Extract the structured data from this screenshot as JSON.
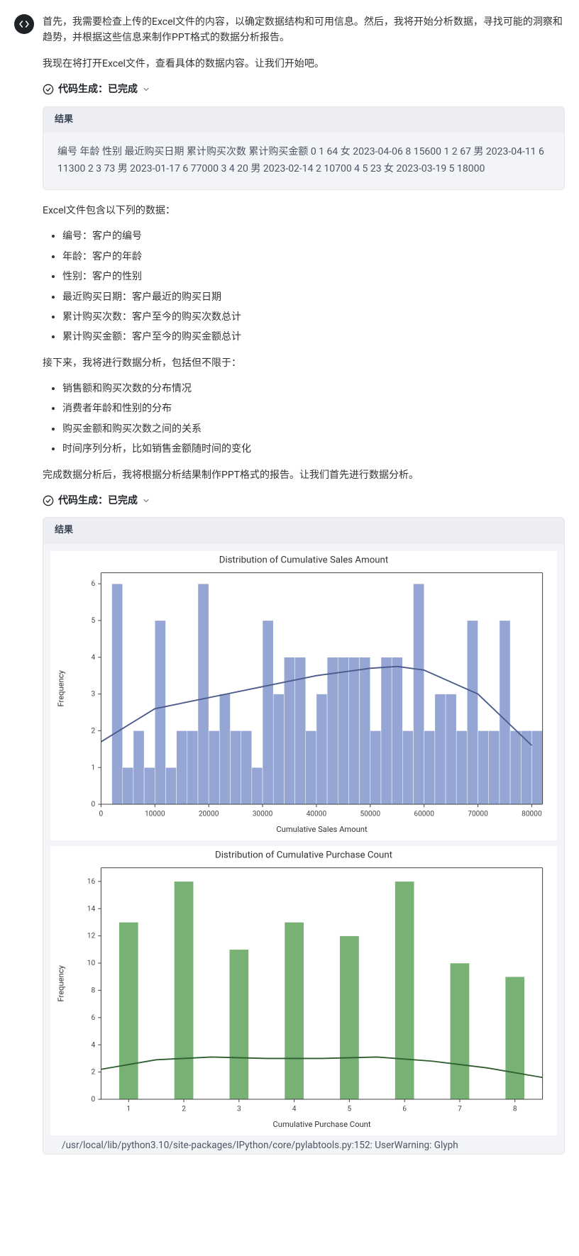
{
  "avatar": {
    "bg": "#1f2328",
    "icon_stroke": "#ffffff"
  },
  "intro": {
    "p1": "首先，我需要检查上传的Excel文件的内容，以确定数据结构和可用信息。然后，我将开始分析数据，寻找可能的洞察和趋势，并根据这些信息来制作PPT格式的数据分析报告。",
    "p2": "我现在将打开Excel文件，查看具体的数据内容。让我们开始吧。"
  },
  "status1": {
    "prefix": "代码生成：",
    "state": "已完成"
  },
  "result1": {
    "header": "结果",
    "body": "编号 年龄 性别 最近购买日期 累计购买次数 累计购买金额 0 1 64 女 2023-04-06 8 15600 1 2 67 男 2023-04-11 6 11300 2 3 73 男 2023-01-17 6 77000 3 4 20 男 2023-02-14 2 10700 4 5 23 女 2023-03-19 5 18000"
  },
  "columns_intro": "Excel文件包含以下列的数据：",
  "columns": [
    "编号：客户的编号",
    "年龄：客户的年龄",
    "性别：客户的性别",
    "最近购买日期：客户最近的购买日期",
    "累计购买次数：客户至今的购买次数总计",
    "累计购买金额：客户至今的购买金额总计"
  ],
  "analysis_intro": "接下来，我将进行数据分析，包括但不限于：",
  "analysis_items": [
    "销售额和购买次数的分布情况",
    "消费者年龄和性别的分布",
    "购买金额和购买次数之间的关系",
    "时间序列分析，比如销售金额随时间的变化"
  ],
  "analysis_outro": "完成数据分析后，我将根据分析结果制作PPT格式的报告。让我们首先进行数据分析。",
  "status2": {
    "prefix": "代码生成：",
    "state": "已完成"
  },
  "result2_header": "结果",
  "chart1": {
    "type": "histogram",
    "title": "Distribution of Cumulative Sales Amount",
    "title_fontsize": 13,
    "xlabel": "Cumulative Sales Amount",
    "ylabel": "Frequency",
    "label_fontsize": 11,
    "xlim": [
      0,
      82000
    ],
    "ylim": [
      0,
      6.3
    ],
    "xticks": [
      0,
      10000,
      20000,
      30000,
      40000,
      50000,
      60000,
      70000,
      80000
    ],
    "yticks": [
      0,
      1,
      2,
      3,
      4,
      5,
      6
    ],
    "bar_color": "#8a9bcf",
    "bar_alpha": 0.9,
    "kde_color": "#4a5a8a",
    "kde_width": 1.8,
    "background_color": "#ffffff",
    "border_color": "#444444",
    "bin_width": 2000,
    "bins": [
      {
        "x": 2000,
        "h": 6
      },
      {
        "x": 4000,
        "h": 1
      },
      {
        "x": 6000,
        "h": 2
      },
      {
        "x": 8000,
        "h": 1
      },
      {
        "x": 10000,
        "h": 5
      },
      {
        "x": 12000,
        "h": 1
      },
      {
        "x": 14000,
        "h": 2
      },
      {
        "x": 16000,
        "h": 2
      },
      {
        "x": 18000,
        "h": 6
      },
      {
        "x": 20000,
        "h": 2
      },
      {
        "x": 22000,
        "h": 3
      },
      {
        "x": 24000,
        "h": 2
      },
      {
        "x": 26000,
        "h": 2
      },
      {
        "x": 28000,
        "h": 1
      },
      {
        "x": 30000,
        "h": 5
      },
      {
        "x": 32000,
        "h": 3
      },
      {
        "x": 34000,
        "h": 4
      },
      {
        "x": 36000,
        "h": 4
      },
      {
        "x": 38000,
        "h": 2
      },
      {
        "x": 40000,
        "h": 3
      },
      {
        "x": 42000,
        "h": 4
      },
      {
        "x": 44000,
        "h": 4
      },
      {
        "x": 46000,
        "h": 4
      },
      {
        "x": 48000,
        "h": 4
      },
      {
        "x": 50000,
        "h": 2
      },
      {
        "x": 52000,
        "h": 4
      },
      {
        "x": 54000,
        "h": 4
      },
      {
        "x": 56000,
        "h": 2
      },
      {
        "x": 58000,
        "h": 6
      },
      {
        "x": 60000,
        "h": 2
      },
      {
        "x": 62000,
        "h": 3
      },
      {
        "x": 64000,
        "h": 3
      },
      {
        "x": 66000,
        "h": 2
      },
      {
        "x": 68000,
        "h": 5
      },
      {
        "x": 70000,
        "h": 2
      },
      {
        "x": 72000,
        "h": 2
      },
      {
        "x": 74000,
        "h": 5
      },
      {
        "x": 76000,
        "h": 2
      },
      {
        "x": 78000,
        "h": 2
      },
      {
        "x": 80000,
        "h": 2
      }
    ],
    "kde_points": [
      {
        "x": 0,
        "y": 1.7
      },
      {
        "x": 10000,
        "y": 2.6
      },
      {
        "x": 20000,
        "y": 2.9
      },
      {
        "x": 30000,
        "y": 3.2
      },
      {
        "x": 40000,
        "y": 3.5
      },
      {
        "x": 50000,
        "y": 3.7
      },
      {
        "x": 55000,
        "y": 3.75
      },
      {
        "x": 60000,
        "y": 3.65
      },
      {
        "x": 70000,
        "y": 3.0
      },
      {
        "x": 80000,
        "y": 1.6
      }
    ]
  },
  "chart2": {
    "type": "bar",
    "title": "Distribution of Cumulative Purchase Count",
    "title_fontsize": 13,
    "xlabel": "Cumulative Purchase Count",
    "ylabel": "Frequency",
    "label_fontsize": 11,
    "xlim": [
      0.5,
      8.5
    ],
    "ylim": [
      0,
      17
    ],
    "xticks": [
      1,
      2,
      3,
      4,
      5,
      6,
      7,
      8
    ],
    "yticks": [
      0,
      2,
      4,
      6,
      8,
      10,
      12,
      14,
      16
    ],
    "bar_color": "#6bab68",
    "bar_alpha": 0.92,
    "kde_color": "#2f5f2f",
    "kde_width": 1.8,
    "background_color": "#ffffff",
    "border_color": "#444444",
    "bar_width": 0.35,
    "bars": [
      {
        "x": 1,
        "h": 13
      },
      {
        "x": 2,
        "h": 16
      },
      {
        "x": 3,
        "h": 11
      },
      {
        "x": 4,
        "h": 13
      },
      {
        "x": 5,
        "h": 12
      },
      {
        "x": 6,
        "h": 16
      },
      {
        "x": 7,
        "h": 10
      },
      {
        "x": 8,
        "h": 9
      }
    ],
    "kde_points": [
      {
        "x": 0.5,
        "y": 2.2
      },
      {
        "x": 1.5,
        "y": 2.9
      },
      {
        "x": 2.5,
        "y": 3.1
      },
      {
        "x": 3.5,
        "y": 3.0
      },
      {
        "x": 4.5,
        "y": 3.0
      },
      {
        "x": 5.5,
        "y": 3.1
      },
      {
        "x": 6.5,
        "y": 2.8
      },
      {
        "x": 7.5,
        "y": 2.3
      },
      {
        "x": 8.5,
        "y": 1.6
      }
    ]
  },
  "warning": "/usr/local/lib/python3.10/site-packages/IPython/core/pylabtools.py:152: UserWarning: Glyph"
}
